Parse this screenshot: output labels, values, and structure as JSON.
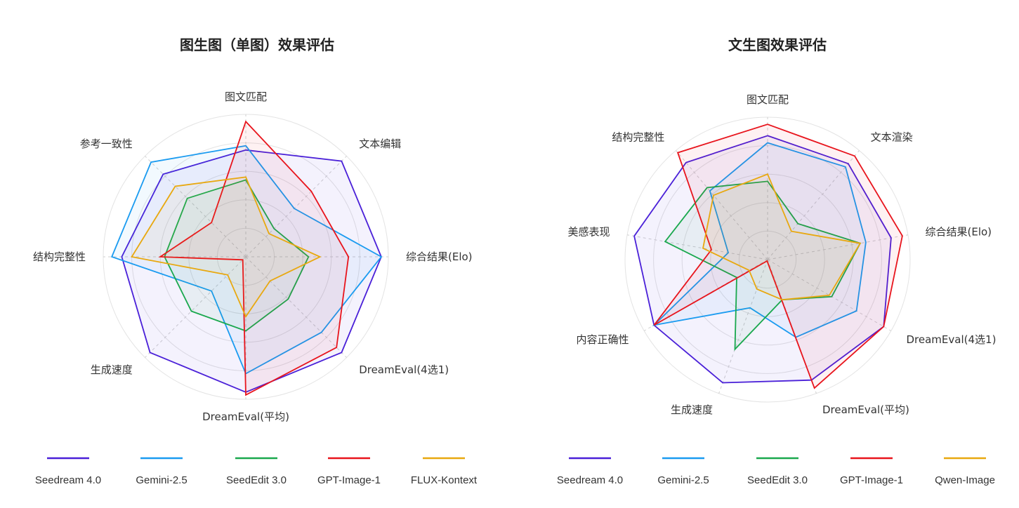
{
  "chart_data": [
    {
      "type": "radar",
      "title": "图生图（单图）效果评估",
      "axes": [
        "图文匹配",
        "文本编辑",
        "综合结果(Elo)",
        "DreamEval(4选1)",
        "DreamEval(平均)",
        "生成速度",
        "结构完整性",
        "参考一致性"
      ],
      "rlim": [
        0,
        1
      ],
      "grid": true,
      "legend_position": "bottom",
      "series": [
        {
          "name": "Seedream 4.0",
          "color": "#4a20d8",
          "values": [
            0.75,
            0.95,
            0.95,
            0.95,
            0.95,
            0.95,
            0.87,
            0.82
          ]
        },
        {
          "name": "Gemini-2.5",
          "color": "#1a9bf0",
          "values": [
            0.78,
            0.48,
            0.95,
            0.75,
            0.82,
            0.34,
            0.94,
            0.94
          ]
        },
        {
          "name": "SeedEdit 3.0",
          "color": "#1aa84e",
          "values": [
            0.54,
            0.28,
            0.44,
            0.42,
            0.52,
            0.54,
            0.57,
            0.58
          ]
        },
        {
          "name": "GPT-Image-1",
          "color": "#e8141c",
          "values": [
            0.95,
            0.65,
            0.72,
            0.9,
            0.97,
            0.03,
            0.6,
            0.34
          ]
        },
        {
          "name": "FLUX-Kontext",
          "color": "#e8a80f",
          "values": [
            0.56,
            0.23,
            0.52,
            0.24,
            0.42,
            0.18,
            0.8,
            0.7
          ]
        }
      ]
    },
    {
      "type": "radar",
      "title": "文生图效果评估",
      "axes": [
        "图文匹配",
        "文本渲染",
        "综合结果(Elo)",
        "DreamEval(4选1)",
        "DreamEval(平均)",
        "生成速度",
        "内容正确性",
        "美感表现",
        "结构完整性"
      ],
      "rlim": [
        0,
        1
      ],
      "grid": true,
      "legend_position": "bottom",
      "series": [
        {
          "name": "Seedream 4.0",
          "color": "#4a20d8",
          "values": [
            0.87,
            0.88,
            0.88,
            0.94,
            0.9,
            0.92,
            0.92,
            0.95,
            0.89
          ]
        },
        {
          "name": "Gemini-2.5",
          "color": "#1a9bf0",
          "values": [
            0.82,
            0.85,
            0.7,
            0.72,
            0.58,
            0.36,
            0.92,
            0.28,
            0.63
          ]
        },
        {
          "name": "SeedEdit 3.0",
          "color": "#1aa84e",
          "values": [
            0.55,
            0.33,
            0.66,
            0.52,
            0.3,
            0.67,
            0.25,
            0.73,
            0.66
          ]
        },
        {
          "name": "GPT-Image-1",
          "color": "#e8141c",
          "values": [
            0.95,
            0.95,
            0.96,
            0.94,
            0.96,
            0.01,
            0.92,
            0.4,
            0.98
          ]
        },
        {
          "name": "Qwen-Image",
          "color": "#e8a80f",
          "values": [
            0.6,
            0.26,
            0.66,
            0.5,
            0.3,
            0.22,
            0.15,
            0.46,
            0.59
          ]
        }
      ]
    }
  ]
}
